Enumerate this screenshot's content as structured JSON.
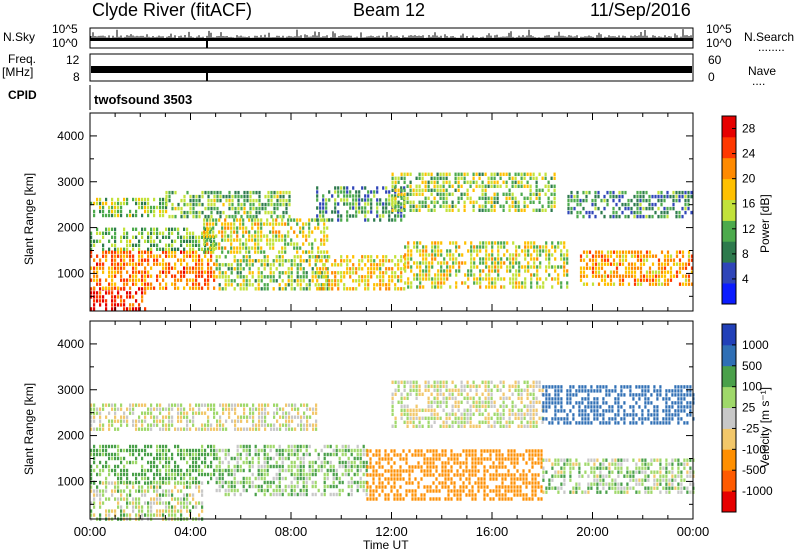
{
  "header": {
    "title": "Clyde River (fitACF)",
    "beam": "Beam 12",
    "date": "11/Sep/2016"
  },
  "panels": {
    "nsky_label": "N.Sky",
    "nsearch_label": "N.Search",
    "nsearch_dots": "........",
    "noise_ticks": [
      "10^5",
      "10^0"
    ],
    "freq_label": "Freq.",
    "freq_unit": "[MHz]",
    "freq_ticks": [
      "12",
      "8"
    ],
    "nave_label": "Nave",
    "nave_dots": "....",
    "nave_ticks": [
      "60",
      "0"
    ],
    "cpid_label": "CPID",
    "cpid_value": "twofsound 3503"
  },
  "colors": {
    "power_scale": [
      "#0b1cff",
      "#2f45b8",
      "#2d7a4d",
      "#4caa4c",
      "#c2e23a",
      "#ffc000",
      "#ff8a00",
      "#ff3800",
      "#e60000"
    ],
    "velocity_scale": [
      "#e60000",
      "#ff5a00",
      "#ff8f00",
      "#f2c76a",
      "#c8c8c8",
      "#9fd86a",
      "#4aa04a",
      "#2f6fb5",
      "#2140b8"
    ]
  },
  "chart_data": [
    {
      "type": "heatmap",
      "title": "",
      "quantity": "Power",
      "xlabel": "",
      "ylabel": "Slant Range [km]",
      "xlim": [
        0,
        24
      ],
      "ylim": [
        180,
        4500
      ],
      "x_ticks": [
        "00:00",
        "04:00",
        "08:00",
        "12:00",
        "16:00",
        "20:00",
        "00:00"
      ],
      "y_ticks": [
        1000,
        2000,
        3000,
        4000
      ],
      "colorbar": {
        "label": "Power [dB]",
        "ticks": [
          "4",
          "8",
          "12",
          "16",
          "20",
          "24",
          "28"
        ],
        "range": [
          0,
          30
        ]
      },
      "echo_regions": [
        {
          "t": [
            0.0,
            2.2
          ],
          "r": [
            180,
            700
          ],
          "value": 27
        },
        {
          "t": [
            0.0,
            5.0
          ],
          "r": [
            700,
            1500
          ],
          "value": 22
        },
        {
          "t": [
            0.0,
            5.0
          ],
          "r": [
            1500,
            2000
          ],
          "value": 12
        },
        {
          "t": [
            0.0,
            3.0
          ],
          "r": [
            2250,
            2650
          ],
          "value": 14
        },
        {
          "t": [
            3.0,
            8.0
          ],
          "r": [
            2200,
            2800
          ],
          "value": 12
        },
        {
          "t": [
            4.5,
            9.5
          ],
          "r": [
            1500,
            2200
          ],
          "value": 16
        },
        {
          "t": [
            5.0,
            9.5
          ],
          "r": [
            700,
            1400
          ],
          "value": 14
        },
        {
          "t": [
            9.0,
            12.5
          ],
          "r": [
            2200,
            2900
          ],
          "value": 10
        },
        {
          "t": [
            9.0,
            12.5
          ],
          "r": [
            700,
            1400
          ],
          "value": 18
        },
        {
          "t": [
            12.0,
            18.5
          ],
          "r": [
            2400,
            3200
          ],
          "value": 14
        },
        {
          "t": [
            12.5,
            19.0
          ],
          "r": [
            700,
            1700
          ],
          "value": 16
        },
        {
          "t": [
            19.0,
            24.0
          ],
          "r": [
            2200,
            2800
          ],
          "value": 9
        },
        {
          "t": [
            19.5,
            24.0
          ],
          "r": [
            800,
            1500
          ],
          "value": 20
        }
      ]
    },
    {
      "type": "heatmap",
      "title": "",
      "quantity": "Velocity",
      "xlabel": "Time UT",
      "ylabel": "Slant Range [km]",
      "xlim": [
        0,
        24
      ],
      "ylim": [
        180,
        4500
      ],
      "x_ticks": [
        "00:00",
        "04:00",
        "08:00",
        "12:00",
        "16:00",
        "20:00",
        "00:00"
      ],
      "y_ticks": [
        1000,
        2000,
        3000,
        4000
      ],
      "colorbar": {
        "label": "Velocity [m s⁻¹]",
        "ticks": [
          "1000",
          "500",
          "100",
          "25",
          "-25",
          "-100",
          "-500",
          "-1000"
        ]
      },
      "echo_regions": [
        {
          "t": [
            0.0,
            4.5
          ],
          "r": [
            200,
            1000
          ],
          "value": 25
        },
        {
          "t": [
            0.0,
            5.0
          ],
          "r": [
            1000,
            1800
          ],
          "value": 150
        },
        {
          "t": [
            0.0,
            9.0
          ],
          "r": [
            2100,
            2700
          ],
          "value": 0
        },
        {
          "t": [
            5.0,
            11.0
          ],
          "r": [
            700,
            1800
          ],
          "value": 80
        },
        {
          "t": [
            11.0,
            18.0
          ],
          "r": [
            600,
            1700
          ],
          "value": -300
        },
        {
          "t": [
            12.0,
            18.0
          ],
          "r": [
            2200,
            3200
          ],
          "value": 0
        },
        {
          "t": [
            18.0,
            24.0
          ],
          "r": [
            2300,
            3100
          ],
          "value": 700
        },
        {
          "t": [
            18.0,
            24.0
          ],
          "r": [
            800,
            1500
          ],
          "value": 60
        }
      ]
    }
  ]
}
